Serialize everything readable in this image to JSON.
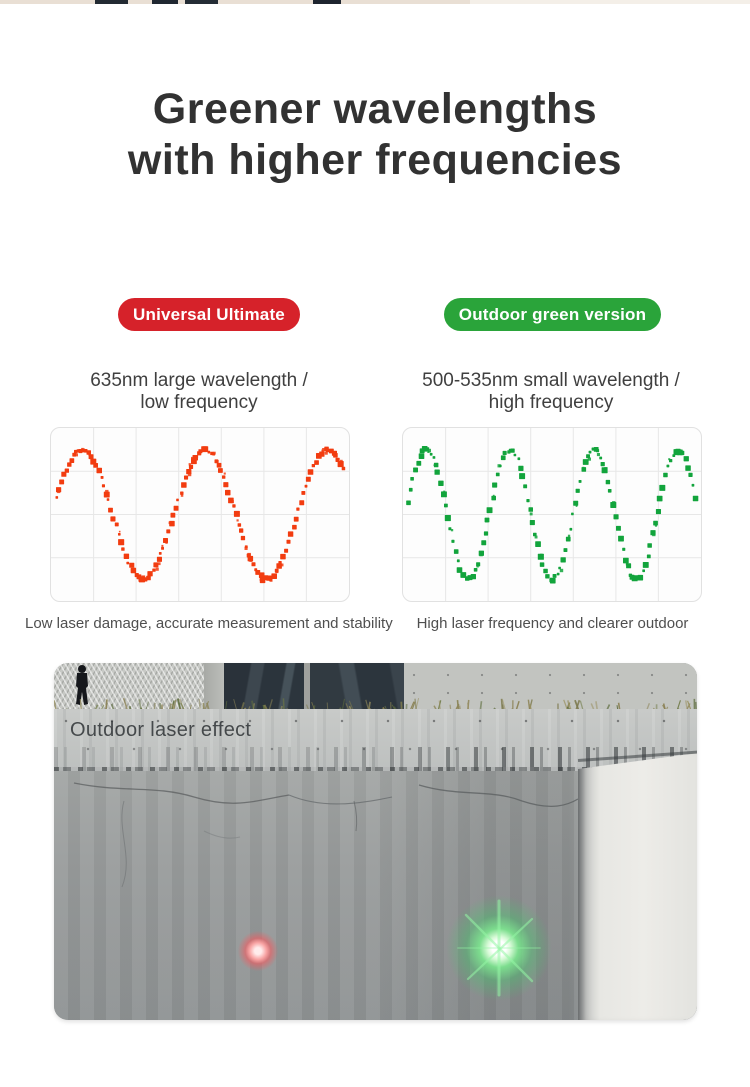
{
  "page_background": "#ffffff",
  "top_strip": {
    "base_color": "#e9dfd4",
    "fragment_color": "#222a32"
  },
  "header": {
    "title_line1": "Greener wavelengths",
    "title_line2": "with higher frequencies",
    "color": "#323232"
  },
  "comparison": {
    "left": {
      "badge": "Universal Ultimate",
      "badge_color": "#d6222a",
      "subtitle_line1": "635nm large wavelength /",
      "subtitle_line2": "low frequency",
      "caption": "Low laser damage, accurate measurement and stability"
    },
    "right": {
      "badge": "Outdoor green version",
      "badge_color": "#2aa43a",
      "subtitle_line1": "500-535nm small wavelength /",
      "subtitle_line2": "high frequency",
      "caption": "High laser frequency and clearer outdoor"
    }
  },
  "chart_data": [
    {
      "type": "line",
      "id": "red-waveform",
      "title": "635nm large wavelength / low frequency",
      "style": "dotted-oscilloscope",
      "grid": true,
      "grid_cols": 7,
      "grid_rows": 4,
      "axes_labels": false,
      "series": [
        {
          "name": "635nm red laser wave",
          "color": "#f23c10",
          "cycles": 2.42,
          "amplitude_rel": 0.75,
          "phase_deg": 0
        }
      ]
    },
    {
      "type": "line",
      "id": "green-waveform",
      "title": "500-535nm small wavelength / high frequency",
      "style": "dotted-oscilloscope",
      "grid": true,
      "grid_cols": 7,
      "grid_rows": 4,
      "axes_labels": false,
      "series": [
        {
          "name": "500-535nm green laser wave",
          "color": "#12a43c",
          "cycles": 3.55,
          "amplitude_rel": 0.75,
          "phase_deg": -10
        }
      ]
    }
  ],
  "photo": {
    "label": "Outdoor laser effect",
    "markers": [
      {
        "name": "red-laser-dot",
        "color": "#f25b60"
      },
      {
        "name": "green-laser-starburst",
        "color": "#3fd06a"
      }
    ]
  }
}
